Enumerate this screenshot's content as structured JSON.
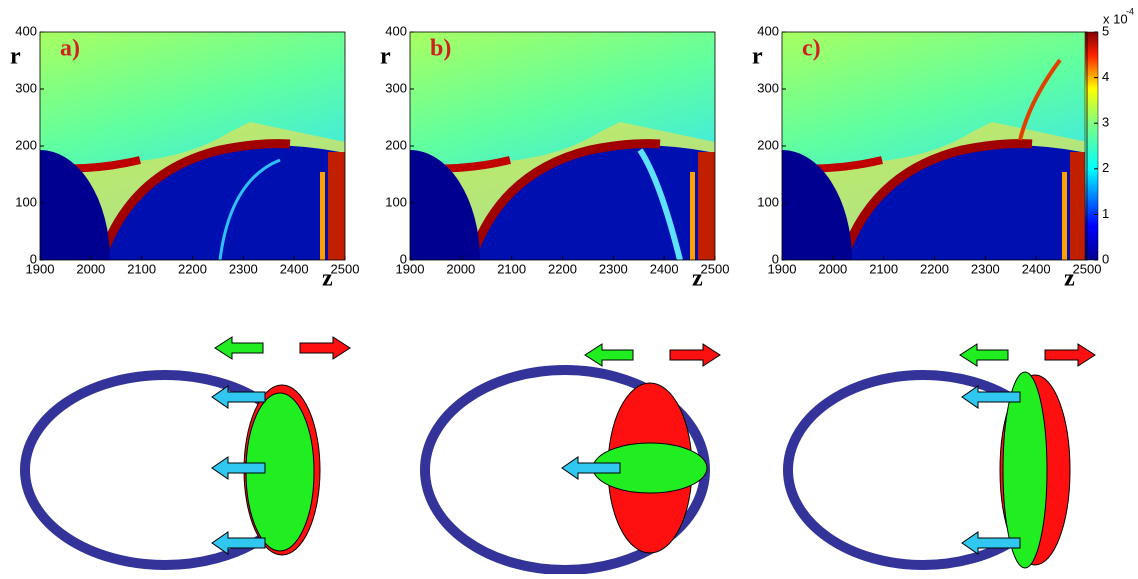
{
  "panels": [
    {
      "label": "a)"
    },
    {
      "label": "b)"
    },
    {
      "label": "c)"
    }
  ],
  "axes": {
    "x_label": "z",
    "y_label": "r",
    "xticks": [
      1900,
      2000,
      2100,
      2200,
      2300,
      2400,
      2500
    ],
    "xlim": [
      1900,
      2500
    ],
    "yticks": [
      0,
      100,
      200,
      300,
      400
    ],
    "ylim": [
      0,
      400
    ]
  },
  "colorbar": {
    "ticks": [
      0,
      1,
      2,
      3,
      4,
      5
    ],
    "lim": [
      0,
      5
    ],
    "multiplier": "x 10",
    "exponent": "-4"
  }
}
